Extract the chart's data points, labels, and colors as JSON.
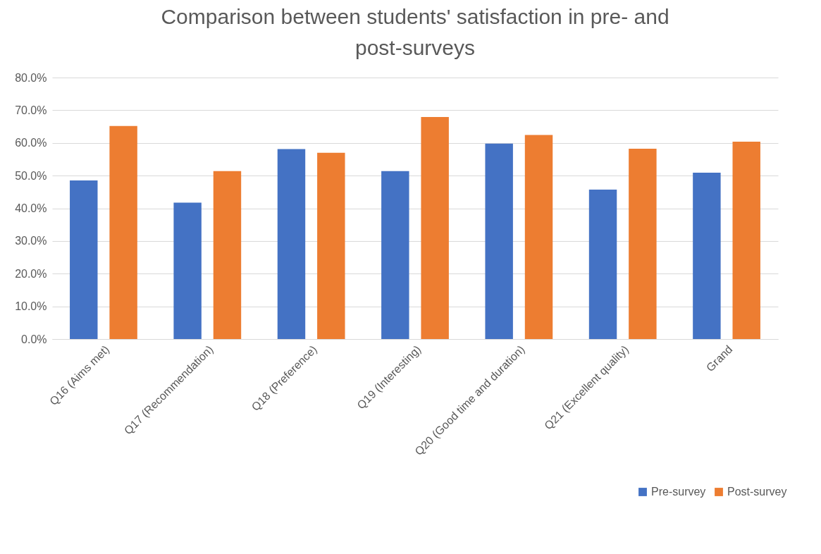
{
  "chart_data": {
    "type": "bar",
    "title": "Comparison between students' satisfaction in pre- and post-surveys",
    "categories": [
      "Q16 (Aims met)",
      "Q17 (Recommendation)",
      "Q18 (Preference)",
      "Q19 (Interesting)",
      "Q20 (Good time and duration)",
      "Q21 (Excellent quality)",
      "Grand"
    ],
    "series": [
      {
        "name": "Pre-survey",
        "color": "#4472c4",
        "values": [
          48.5,
          41.7,
          58.1,
          51.4,
          59.8,
          45.7,
          50.9
        ]
      },
      {
        "name": "Post-survey",
        "color": "#ed7d31",
        "values": [
          65.2,
          51.4,
          57.0,
          67.9,
          62.4,
          58.2,
          60.4
        ]
      }
    ],
    "ylim": [
      0,
      80
    ],
    "yticks": [
      {
        "value": 0,
        "label": "0.0%"
      },
      {
        "value": 10,
        "label": "10.0%"
      },
      {
        "value": 20,
        "label": "20.0%"
      },
      {
        "value": 30,
        "label": "30.0%"
      },
      {
        "value": 40,
        "label": "40.0%"
      },
      {
        "value": 50,
        "label": "50.0%"
      },
      {
        "value": 60,
        "label": "60.0%"
      },
      {
        "value": 70,
        "label": "70.0%"
      },
      {
        "value": 80,
        "label": "80.0%"
      }
    ],
    "grid": "y",
    "legend": "bottom right"
  }
}
